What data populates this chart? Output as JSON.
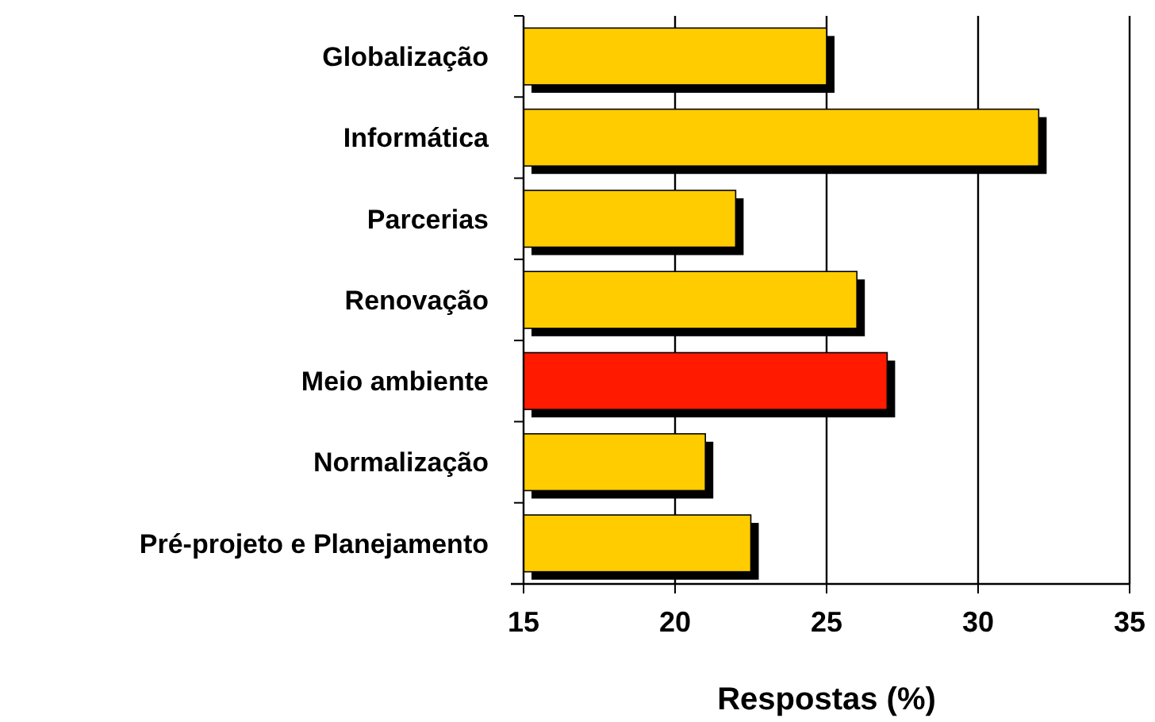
{
  "chart_data": {
    "type": "bar",
    "orientation": "horizontal",
    "xlabel": "Respostas (%)",
    "categories": [
      "Globalização",
      "Informática",
      "Parcerias",
      "Renovação",
      "Meio ambiente",
      "Normalização",
      "Pré-projeto e Planejamento"
    ],
    "values": [
      25,
      32,
      22,
      26,
      27,
      21,
      22.5
    ],
    "colors": [
      "#ffcc00",
      "#ffcc00",
      "#ffcc00",
      "#ffcc00",
      "#ff1a00",
      "#ffcc00",
      "#ffcc00"
    ],
    "xlim": [
      15,
      35
    ],
    "xticks": [
      15,
      20,
      25,
      30,
      35
    ],
    "grid": "x"
  }
}
